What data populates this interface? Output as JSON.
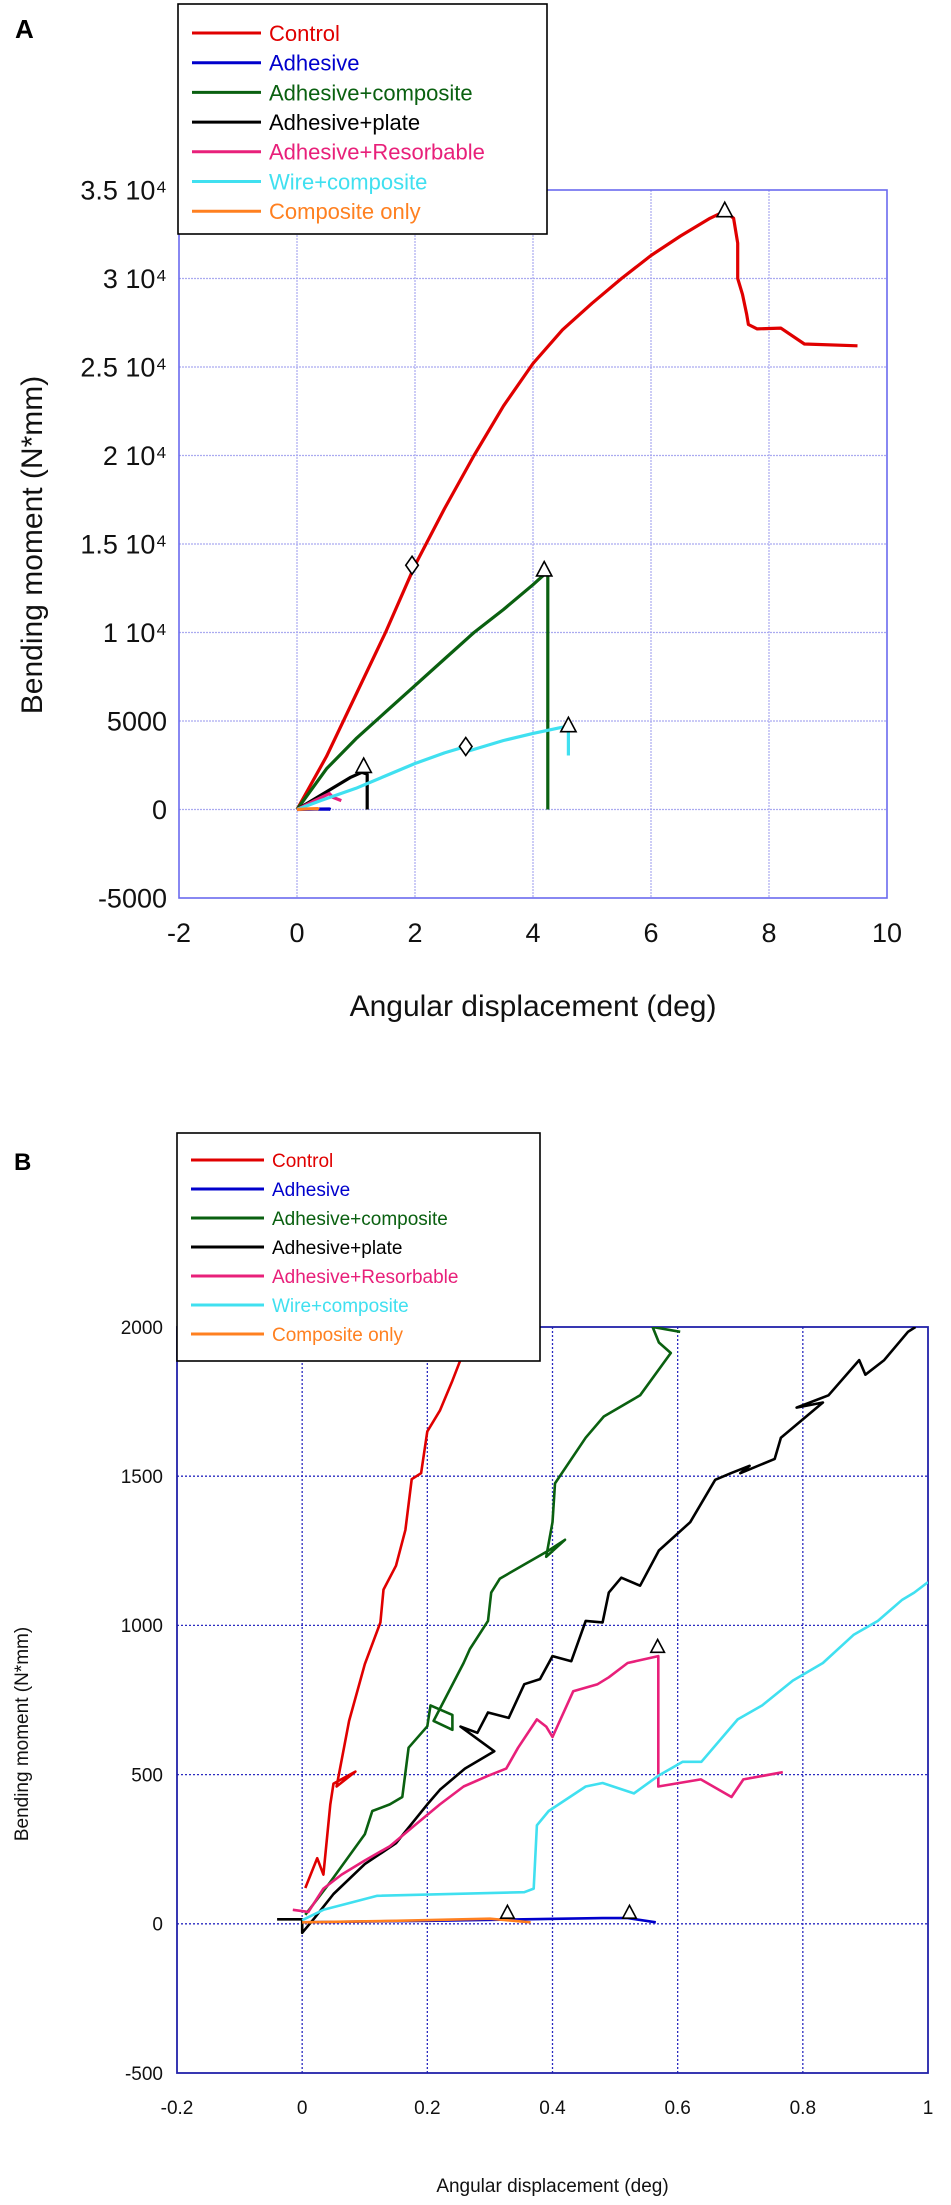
{
  "chart_data": [
    {
      "panel_label": "A",
      "type": "line",
      "title": "",
      "xlabel": "Angular displacement (deg)",
      "ylabel": "Bending moment (N*mm)",
      "xlim": [
        -2,
        10
      ],
      "ylim": [
        -5000,
        35000
      ],
      "xticks": [
        -2,
        0,
        2,
        4,
        6,
        8,
        10
      ],
      "xtick_labels": [
        "-2",
        "0",
        "2",
        "4",
        "6",
        "8",
        "10"
      ],
      "yticks": [
        -5000,
        0,
        5000,
        10000,
        15000,
        20000,
        25000,
        30000,
        35000
      ],
      "ytick_labels": [
        "-5000",
        "0",
        "5000",
        "1 10⁴",
        "1.5 10⁴",
        "2 10⁴",
        "2.5 10⁴",
        "3 10⁴",
        "3.5 10⁴"
      ],
      "grid": true,
      "grid_color": "#aaaaf0",
      "frame_color": "#6a6aee",
      "legend_position": "top-left",
      "series": [
        {
          "name": "Control",
          "color": "#e00000",
          "points": [
            [
              0,
              0
            ],
            [
              0.5,
              3000
            ],
            [
              1,
              6500
            ],
            [
              1.5,
              10000
            ],
            [
              2,
              13800
            ],
            [
              2.5,
              17000
            ],
            [
              3,
              20000
            ],
            [
              3.5,
              22800
            ],
            [
              4,
              25200
            ],
            [
              4.5,
              27100
            ],
            [
              5,
              28600
            ],
            [
              5.5,
              30000
            ],
            [
              6,
              31300
            ],
            [
              6.5,
              32400
            ],
            [
              7,
              33400
            ],
            [
              7.25,
              33800
            ],
            [
              7.4,
              33400
            ],
            [
              7.47,
              32000
            ],
            [
              7.47,
              30000
            ],
            [
              7.55,
              29100
            ],
            [
              7.62,
              28000
            ],
            [
              7.65,
              27400
            ],
            [
              7.8,
              27150
            ],
            [
              8.2,
              27200
            ],
            [
              8.6,
              26300
            ],
            [
              9.5,
              26200
            ]
          ]
        },
        {
          "name": "Adhesive",
          "color": "#0000cc",
          "points": [
            [
              0,
              0
            ],
            [
              0.3,
              20
            ],
            [
              0.55,
              30
            ],
            [
              0.57,
              0
            ]
          ]
        },
        {
          "name": "Adhesive+composite",
          "color": "#0a6010",
          "points": [
            [
              0,
              0
            ],
            [
              0.5,
              2300
            ],
            [
              1,
              4000
            ],
            [
              1.5,
              5500
            ],
            [
              2,
              7000
            ],
            [
              2.5,
              8500
            ],
            [
              3,
              10000
            ],
            [
              3.5,
              11300
            ],
            [
              4,
              12700
            ],
            [
              4.2,
              13300
            ],
            [
              4.25,
              13300
            ],
            [
              4.25,
              0
            ]
          ]
        },
        {
          "name": "Adhesive+plate",
          "color": "#000000",
          "points": [
            [
              0,
              0
            ],
            [
              0.3,
              600
            ],
            [
              0.6,
              1200
            ],
            [
              0.9,
              1800
            ],
            [
              1.1,
              2100
            ],
            [
              1.19,
              2000
            ],
            [
              1.19,
              0
            ]
          ]
        },
        {
          "name": "Adhesive+Resorbable",
          "color": "#e8207a",
          "points": [
            [
              0,
              0
            ],
            [
              0.3,
              500
            ],
            [
              0.55,
              900
            ],
            [
              0.6,
              700
            ],
            [
              0.75,
              500
            ]
          ]
        },
        {
          "name": "Wire+composite",
          "color": "#40e0f0",
          "points": [
            [
              0,
              0
            ],
            [
              0.4,
              500
            ],
            [
              1,
              1200
            ],
            [
              1.5,
              1900
            ],
            [
              2,
              2600
            ],
            [
              2.5,
              3200
            ],
            [
              2.86,
              3560
            ],
            [
              2.9,
              3300
            ],
            [
              3.5,
              3900
            ],
            [
              4,
              4300
            ],
            [
              4.5,
              4650
            ],
            [
              4.6,
              4600
            ],
            [
              4.6,
              3050
            ]
          ]
        },
        {
          "name": "Composite only",
          "color": "#ff8020",
          "points": [
            [
              0,
              0
            ],
            [
              0.2,
              40
            ],
            [
              0.35,
              50
            ],
            [
              0.37,
              0
            ]
          ]
        }
      ],
      "markers": [
        {
          "shape": "triangle",
          "x": 7.25,
          "y": 33800
        },
        {
          "shape": "diamond",
          "x": 1.95,
          "y": 13800
        },
        {
          "shape": "triangle",
          "x": 4.19,
          "y": 13500
        },
        {
          "shape": "triangle",
          "x": 4.6,
          "y": 4700
        },
        {
          "shape": "diamond",
          "x": 2.86,
          "y": 3560
        },
        {
          "shape": "triangle",
          "x": 1.13,
          "y": 2400
        }
      ]
    },
    {
      "panel_label": "B",
      "type": "line",
      "title": "",
      "xlabel": "Angular displacement (deg)",
      "ylabel": "Bending moment (N*mm)",
      "xlim": [
        -0.2,
        1
      ],
      "ylim": [
        -500,
        2000
      ],
      "xticks": [
        -0.2,
        0,
        0.2,
        0.4,
        0.6,
        0.8,
        1
      ],
      "xtick_labels": [
        "-0.2",
        "0",
        "0.2",
        "0.4",
        "0.6",
        "0.8",
        "1"
      ],
      "yticks": [
        -500,
        0,
        500,
        1000,
        1500,
        2000
      ],
      "ytick_labels": [
        "-500",
        "0",
        "500",
        "1000",
        "1500",
        "2000"
      ],
      "grid": true,
      "grid_color": "#2a2ac0",
      "frame_color": "#2222aa",
      "legend_position": "top-left",
      "series": [
        {
          "name": "Control",
          "color": "#e00000",
          "points": [
            [
              0.005,
              120
            ],
            [
              0.024,
              220
            ],
            [
              0.034,
              165
            ],
            [
              0.045,
              400
            ],
            [
              0.05,
              470
            ],
            [
              0.085,
              510
            ],
            [
              0.055,
              460
            ],
            [
              0.075,
              680
            ],
            [
              0.1,
              870
            ],
            [
              0.125,
              1010
            ],
            [
              0.13,
              1120
            ],
            [
              0.15,
              1200
            ],
            [
              0.165,
              1320
            ],
            [
              0.175,
              1490
            ],
            [
              0.19,
              1510
            ],
            [
              0.2,
              1650
            ],
            [
              0.22,
              1720
            ],
            [
              0.24,
              1820
            ],
            [
              0.253,
              1890
            ],
            [
              0.258,
              2000
            ]
          ]
        },
        {
          "name": "Adhesive",
          "color": "#0000cc",
          "points": [
            [
              0,
              5
            ],
            [
              0.2,
              10
            ],
            [
              0.48,
              19
            ],
            [
              0.52,
              19
            ],
            [
              0.565,
              5
            ]
          ]
        },
        {
          "name": "Adhesive+composite",
          "color": "#0a6010",
          "points": [
            [
              0.005,
              30
            ],
            [
              0.045,
              140
            ],
            [
              0.1,
              300
            ],
            [
              0.112,
              378
            ],
            [
              0.14,
              400
            ],
            [
              0.16,
              425
            ],
            [
              0.17,
              590
            ],
            [
              0.2,
              662
            ],
            [
              0.205,
              732
            ],
            [
              0.24,
              700
            ],
            [
              0.24,
              650
            ],
            [
              0.21,
              680
            ],
            [
              0.258,
              874
            ],
            [
              0.268,
              921
            ],
            [
              0.297,
              1015
            ],
            [
              0.302,
              1110
            ],
            [
              0.316,
              1157
            ],
            [
              0.355,
              1204
            ],
            [
              0.394,
              1251
            ],
            [
              0.42,
              1287
            ],
            [
              0.39,
              1230
            ],
            [
              0.4,
              1346
            ],
            [
              0.404,
              1476
            ],
            [
              0.453,
              1629
            ],
            [
              0.482,
              1700
            ],
            [
              0.54,
              1771
            ],
            [
              0.589,
              1913
            ],
            [
              0.57,
              1948
            ],
            [
              0.56,
              2000
            ],
            [
              0.604,
              1984
            ]
          ]
        },
        {
          "name": "Adhesive+plate",
          "color": "#000000",
          "points": [
            [
              -0.04,
              15
            ],
            [
              0,
              15
            ],
            [
              0,
              -30
            ],
            [
              0.02,
              20
            ],
            [
              0.05,
              100
            ],
            [
              0.1,
              200
            ],
            [
              0.15,
              270
            ],
            [
              0.2,
              400
            ],
            [
              0.22,
              449
            ],
            [
              0.26,
              520
            ],
            [
              0.307,
              578
            ],
            [
              0.253,
              661
            ],
            [
              0.28,
              640
            ],
            [
              0.297,
              708
            ],
            [
              0.33,
              690
            ],
            [
              0.355,
              803
            ],
            [
              0.38,
              820
            ],
            [
              0.4,
              897
            ],
            [
              0.43,
              880
            ],
            [
              0.453,
              1015
            ],
            [
              0.48,
              1010
            ],
            [
              0.49,
              1110
            ],
            [
              0.51,
              1160
            ],
            [
              0.54,
              1133
            ],
            [
              0.57,
              1251
            ],
            [
              0.62,
              1346
            ],
            [
              0.66,
              1488
            ],
            [
              0.686,
              1511
            ],
            [
              0.715,
              1535
            ],
            [
              0.7,
              1510
            ],
            [
              0.755,
              1558
            ],
            [
              0.765,
              1629
            ],
            [
              0.832,
              1747
            ],
            [
              0.79,
              1730
            ],
            [
              0.841,
              1771
            ],
            [
              0.89,
              1889
            ],
            [
              0.9,
              1840
            ],
            [
              0.93,
              1889
            ],
            [
              0.968,
              1984
            ],
            [
              0.98,
              2000
            ]
          ]
        },
        {
          "name": "Adhesive+Resorbable",
          "color": "#e8207a",
          "points": [
            [
              -0.015,
              47
            ],
            [
              0.01,
              40
            ],
            [
              0.034,
              118
            ],
            [
              0.063,
              165
            ],
            [
              0.1,
              212
            ],
            [
              0.14,
              260
            ],
            [
              0.18,
              330
            ],
            [
              0.22,
              400
            ],
            [
              0.258,
              460
            ],
            [
              0.297,
              496
            ],
            [
              0.326,
              520
            ],
            [
              0.345,
              590
            ],
            [
              0.375,
              685
            ],
            [
              0.39,
              661
            ],
            [
              0.4,
              626
            ],
            [
              0.433,
              779
            ],
            [
              0.472,
              803
            ],
            [
              0.49,
              826
            ],
            [
              0.52,
              874
            ],
            [
              0.569,
              897
            ],
            [
              0.569,
              460
            ],
            [
              0.637,
              484
            ],
            [
              0.686,
              425
            ],
            [
              0.705,
              484
            ],
            [
              0.768,
              508
            ]
          ]
        },
        {
          "name": "Wire+composite",
          "color": "#40e0f0",
          "points": [
            [
              0,
              12
            ],
            [
              0.034,
              47
            ],
            [
              0.12,
              94
            ],
            [
              0.355,
              106
            ],
            [
              0.37,
              118
            ],
            [
              0.375,
              330
            ],
            [
              0.394,
              378
            ],
            [
              0.453,
              460
            ],
            [
              0.48,
              472
            ],
            [
              0.53,
              437
            ],
            [
              0.569,
              496
            ],
            [
              0.608,
              543
            ],
            [
              0.638,
              543
            ],
            [
              0.696,
              685
            ],
            [
              0.735,
              732
            ],
            [
              0.784,
              815
            ],
            [
              0.832,
              874
            ],
            [
              0.881,
              968
            ],
            [
              0.92,
              1015
            ],
            [
              0.959,
              1086
            ],
            [
              0.978,
              1110
            ],
            [
              1,
              1145
            ]
          ]
        },
        {
          "name": "Composite only",
          "color": "#ff8020",
          "points": [
            [
              0,
              5
            ],
            [
              0.15,
              10
            ],
            [
              0.3,
              17
            ],
            [
              0.365,
              5
            ]
          ]
        }
      ],
      "markers": [
        {
          "shape": "triangle",
          "x": 0.568,
          "y": 926
        },
        {
          "shape": "triangle",
          "x": 0.523,
          "y": 35
        },
        {
          "shape": "triangle",
          "x": 0.328,
          "y": 35
        }
      ]
    }
  ]
}
